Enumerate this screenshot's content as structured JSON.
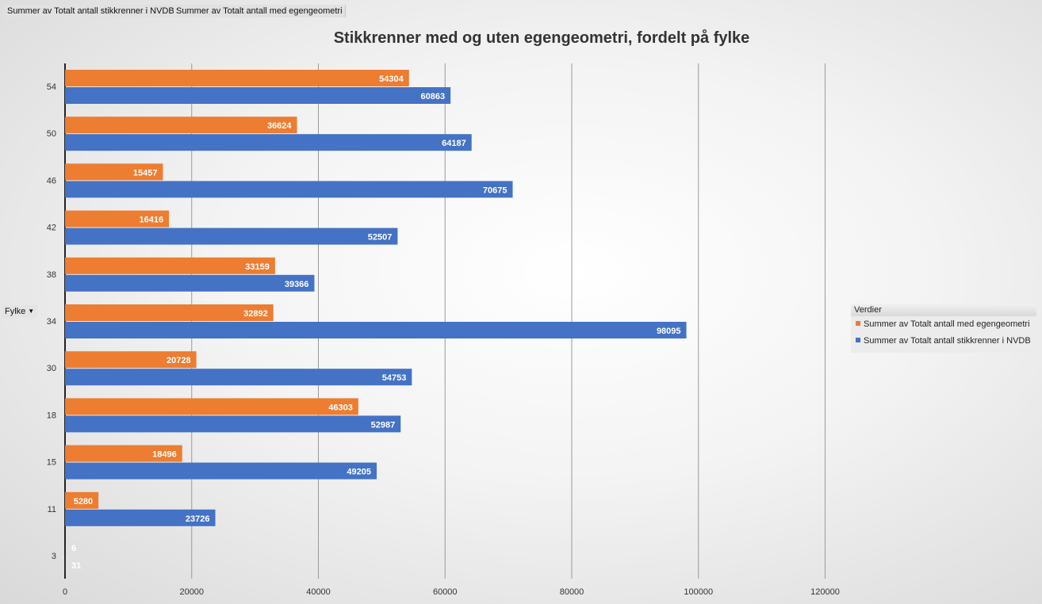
{
  "field_buttons": {
    "nvdb": "Summer  av Totalt antall stikkrenner i NVDB",
    "egengeometri": "Summer  av Totalt antall med egengeometri"
  },
  "axis_field": {
    "label": "Fylke"
  },
  "legend": {
    "title": "Verdier",
    "items": [
      {
        "label": "Summer av Totalt antall med egengeometri",
        "color": "#ed7d31"
      },
      {
        "label": "Summer av Totalt antall stikkrenner i NVDB",
        "color": "#4472c4"
      }
    ]
  },
  "chart_data": {
    "type": "bar",
    "orientation": "horizontal",
    "title": "Stikkrenner med og uten egengeometri, fordelt på fylke",
    "xlabel": "",
    "ylabel": "",
    "categories": [
      "54",
      "50",
      "46",
      "42",
      "38",
      "34",
      "30",
      "18",
      "15",
      "11",
      "3"
    ],
    "series": [
      {
        "name": "Summer av Totalt antall med egengeometri",
        "color": "#ed7d31",
        "values": [
          54304,
          36624,
          15457,
          16416,
          33159,
          32892,
          20728,
          46303,
          18496,
          5280,
          6
        ]
      },
      {
        "name": "Summer av Totalt antall stikkrenner i NVDB",
        "color": "#4472c4",
        "values": [
          60863,
          64187,
          70675,
          52507,
          39366,
          98095,
          54753,
          52987,
          49205,
          23726,
          31
        ]
      }
    ],
    "xlim": [
      0,
      120000
    ],
    "xticks": [
      0,
      20000,
      40000,
      60000,
      80000,
      100000,
      120000
    ],
    "grid": true,
    "data_labels": true,
    "legend_position": "right"
  }
}
